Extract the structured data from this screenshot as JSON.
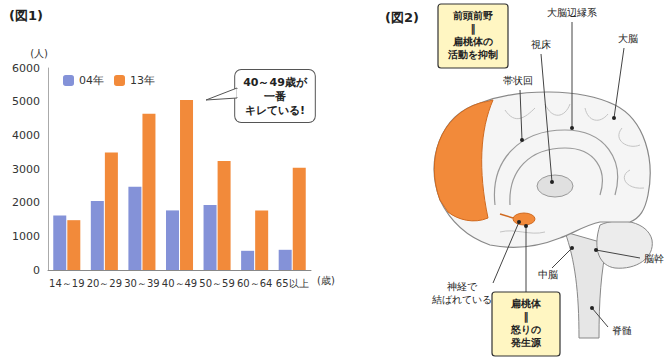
{
  "chart_data": {
    "type": "bar",
    "title": "(図1)",
    "y_label": "(人)",
    "x_label": "(歳)",
    "categories": [
      "14～19",
      "20～29",
      "30～39",
      "40～49",
      "50～59",
      "60～64",
      "65以上"
    ],
    "series": [
      {
        "name": "04年",
        "color": "#8492d8",
        "values": [
          1620,
          2050,
          2470,
          1770,
          1930,
          570,
          600
        ]
      },
      {
        "name": "13年",
        "color": "#f28a3a",
        "values": [
          1480,
          3490,
          4640,
          5050,
          3240,
          1770,
          3040
        ]
      }
    ],
    "ylim": [
      0,
      6000
    ],
    "yticks": [
      0,
      1000,
      2000,
      3000,
      4000,
      5000,
      6000
    ],
    "grid": false,
    "legend": "upper left",
    "annotations": [
      "40～49歳が\n一番\nキレている!"
    ]
  },
  "diagram": {
    "title": "(図2)",
    "boxes": [
      [
        "前頭前野",
        "‖",
        "扁桃体の",
        "活動を抑制"
      ],
      [
        "扁桃体",
        "‖",
        "怒りの",
        "発生源"
      ]
    ],
    "labels": [
      "大脳辺縁系",
      "大脳",
      "視床",
      "帯状回",
      [
        "神経で",
        "結ばれている"
      ],
      "中脳",
      "脳幹",
      "脊髄"
    ]
  }
}
